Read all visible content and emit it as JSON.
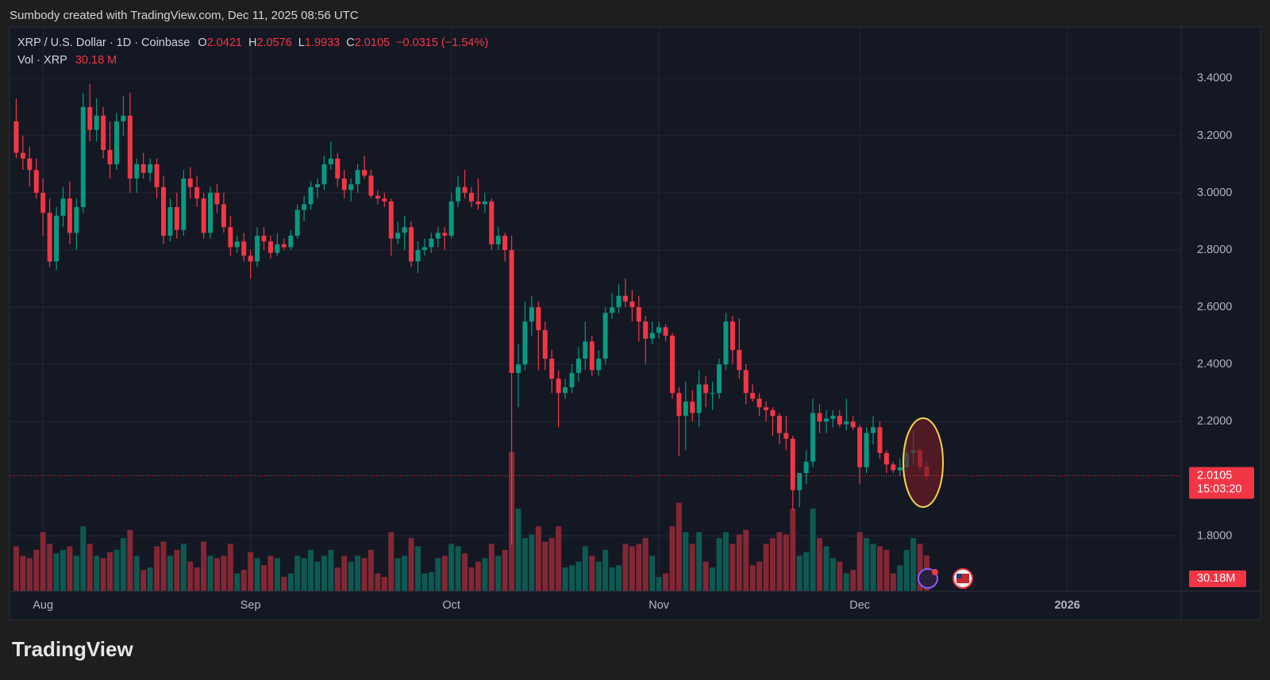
{
  "watermark": "Sumbody created with TradingView.com, Dec 11, 2025 08:56 UTC",
  "footer_logo": "TradingView",
  "chart_data": {
    "type": "candlestick",
    "symbol": "XRP / U.S. Dollar · 1D · Coinbase",
    "ohlc_letters": [
      "O",
      "H",
      "L",
      "C"
    ],
    "change_label": "−0.0315 (−1.54%)",
    "volume_title": "Vol · XRP",
    "volume_label": "30.18 M",
    "volume_tag_label": "30.18M",
    "countdown": "15:03:20",
    "up_color": "#089981",
    "down_color": "#f23645",
    "x": [
      "2025-07-28",
      "2025-07-29",
      "2025-07-30",
      "2025-07-31",
      "2025-08-01",
      "2025-08-02",
      "2025-08-03",
      "2025-08-04",
      "2025-08-05",
      "2025-08-06",
      "2025-08-07",
      "2025-08-08",
      "2025-08-09",
      "2025-08-10",
      "2025-08-11",
      "2025-08-12",
      "2025-08-13",
      "2025-08-14",
      "2025-08-15",
      "2025-08-16",
      "2025-08-17",
      "2025-08-18",
      "2025-08-19",
      "2025-08-20",
      "2025-08-21",
      "2025-08-22",
      "2025-08-23",
      "2025-08-24",
      "2025-08-25",
      "2025-08-26",
      "2025-08-27",
      "2025-08-28",
      "2025-08-29",
      "2025-08-30",
      "2025-08-31",
      "2025-09-01",
      "2025-09-02",
      "2025-09-03",
      "2025-09-04",
      "2025-09-05",
      "2025-09-06",
      "2025-09-07",
      "2025-09-08",
      "2025-09-09",
      "2025-09-10",
      "2025-09-11",
      "2025-09-12",
      "2025-09-13",
      "2025-09-14",
      "2025-09-15",
      "2025-09-16",
      "2025-09-17",
      "2025-09-18",
      "2025-09-19",
      "2025-09-20",
      "2025-09-21",
      "2025-09-22",
      "2025-09-23",
      "2025-09-24",
      "2025-09-25",
      "2025-09-26",
      "2025-09-27",
      "2025-09-28",
      "2025-09-29",
      "2025-09-30",
      "2025-10-01",
      "2025-10-02",
      "2025-10-03",
      "2025-10-04",
      "2025-10-05",
      "2025-10-06",
      "2025-10-07",
      "2025-10-08",
      "2025-10-09",
      "2025-10-10",
      "2025-10-11",
      "2025-10-12",
      "2025-10-13",
      "2025-10-14",
      "2025-10-15",
      "2025-10-16",
      "2025-10-17",
      "2025-10-18",
      "2025-10-19",
      "2025-10-20",
      "2025-10-21",
      "2025-10-22",
      "2025-10-23",
      "2025-10-24",
      "2025-10-25",
      "2025-10-26",
      "2025-10-27",
      "2025-10-28",
      "2025-10-29",
      "2025-10-30",
      "2025-10-31",
      "2025-11-01",
      "2025-11-02",
      "2025-11-03",
      "2025-11-04",
      "2025-11-05",
      "2025-11-06",
      "2025-11-07",
      "2025-11-08",
      "2025-11-09",
      "2025-11-10",
      "2025-11-11",
      "2025-11-12",
      "2025-11-13",
      "2025-11-14",
      "2025-11-15",
      "2025-11-16",
      "2025-11-17",
      "2025-11-18",
      "2025-11-19",
      "2025-11-20",
      "2025-11-21",
      "2025-11-22",
      "2025-11-23",
      "2025-11-24",
      "2025-11-25",
      "2025-11-26",
      "2025-11-27",
      "2025-11-28",
      "2025-11-29",
      "2025-11-30",
      "2025-12-01",
      "2025-12-02",
      "2025-12-03",
      "2025-12-04",
      "2025-12-05",
      "2025-12-06",
      "2025-12-07",
      "2025-12-08",
      "2025-12-09",
      "2025-12-10",
      "2025-12-11"
    ],
    "open": [
      3.25,
      3.14,
      3.12,
      3.08,
      3.0,
      2.93,
      2.76,
      2.92,
      2.98,
      2.86,
      2.95,
      3.3,
      3.22,
      3.27,
      3.15,
      3.1,
      3.25,
      3.27,
      3.05,
      3.1,
      3.07,
      3.1,
      3.02,
      2.85,
      2.95,
      2.87,
      3.05,
      3.02,
      2.98,
      2.86,
      3.0,
      2.96,
      2.88,
      2.81,
      2.83,
      2.78,
      2.76,
      2.85,
      2.83,
      2.79,
      2.82,
      2.81,
      2.85,
      2.94,
      2.96,
      3.02,
      3.03,
      3.1,
      3.12,
      3.05,
      3.01,
      3.03,
      3.08,
      3.06,
      2.99,
      2.98,
      2.97,
      2.84,
      2.86,
      2.88,
      2.76,
      2.8,
      2.81,
      2.84,
      2.86,
      2.85,
      2.97,
      3.02,
      3.0,
      2.97,
      2.96,
      2.97,
      2.82,
      2.85,
      2.8,
      2.37,
      2.4,
      2.55,
      2.6,
      2.52,
      2.42,
      2.35,
      2.3,
      2.32,
      2.37,
      2.42,
      2.48,
      2.38,
      2.42,
      2.58,
      2.6,
      2.64,
      2.62,
      2.6,
      2.55,
      2.49,
      2.51,
      2.53,
      2.5,
      2.3,
      2.22,
      2.27,
      2.23,
      2.33,
      2.3,
      2.3,
      2.4,
      2.55,
      2.45,
      2.38,
      2.3,
      2.28,
      2.25,
      2.24,
      2.22,
      2.16,
      2.14,
      1.96,
      2.02,
      2.06,
      2.23,
      2.2,
      2.21,
      2.22,
      2.19,
      2.2,
      2.18,
      2.04,
      2.16,
      2.18,
      2.09,
      2.05,
      2.03,
      2.04,
      2.09,
      2.1,
      2.0421
    ],
    "high": [
      3.33,
      3.2,
      3.16,
      3.12,
      3.05,
      2.98,
      2.95,
      3.02,
      3.04,
      2.98,
      3.35,
      3.38,
      3.33,
      3.3,
      3.25,
      3.28,
      3.34,
      3.35,
      3.12,
      3.14,
      3.12,
      3.12,
      3.06,
      2.98,
      3.0,
      3.08,
      3.09,
      3.06,
      3.0,
      3.02,
      3.03,
      3.0,
      2.92,
      2.85,
      2.86,
      2.8,
      2.88,
      2.88,
      2.85,
      2.86,
      2.84,
      2.87,
      2.96,
      2.99,
      3.04,
      3.05,
      3.13,
      3.18,
      3.14,
      3.08,
      3.05,
      3.1,
      3.13,
      3.08,
      3.01,
      3.0,
      2.98,
      2.9,
      2.92,
      2.9,
      2.83,
      2.84,
      2.86,
      2.88,
      2.88,
      3.0,
      3.06,
      3.08,
      3.02,
      3.05,
      3.0,
      2.98,
      2.88,
      2.86,
      2.85,
      2.47,
      2.62,
      2.64,
      2.62,
      2.55,
      2.45,
      2.38,
      2.35,
      2.4,
      2.46,
      2.55,
      2.5,
      2.45,
      2.6,
      2.65,
      2.68,
      2.7,
      2.66,
      2.64,
      2.57,
      2.55,
      2.55,
      2.54,
      2.51,
      2.32,
      2.34,
      2.31,
      2.38,
      2.36,
      2.34,
      2.42,
      2.58,
      2.57,
      2.56,
      2.4,
      2.33,
      2.3,
      2.27,
      2.25,
      2.23,
      2.22,
      2.15,
      2.02,
      2.1,
      2.28,
      2.26,
      2.24,
      2.24,
      2.24,
      2.28,
      2.22,
      2.19,
      2.18,
      2.22,
      2.2,
      2.1,
      2.06,
      2.07,
      2.14,
      2.17,
      2.11,
      2.0576
    ],
    "low": [
      3.12,
      3.08,
      3.02,
      2.98,
      2.85,
      2.74,
      2.73,
      2.88,
      2.82,
      2.8,
      2.93,
      3.18,
      3.18,
      3.12,
      3.05,
      3.08,
      3.2,
      3.0,
      3.0,
      3.05,
      3.04,
      2.98,
      2.82,
      2.83,
      2.84,
      2.85,
      2.98,
      2.95,
      2.84,
      2.84,
      2.93,
      2.86,
      2.78,
      2.79,
      2.76,
      2.7,
      2.74,
      2.8,
      2.77,
      2.78,
      2.8,
      2.8,
      2.84,
      2.9,
      2.94,
      2.98,
      3.01,
      3.08,
      3.02,
      2.98,
      2.97,
      3.0,
      3.05,
      2.98,
      2.96,
      2.95,
      2.78,
      2.82,
      2.8,
      2.74,
      2.72,
      2.78,
      2.79,
      2.81,
      2.8,
      2.84,
      2.95,
      2.98,
      2.95,
      2.94,
      2.93,
      2.8,
      2.8,
      2.76,
      1.77,
      2.25,
      2.38,
      2.5,
      2.38,
      2.38,
      2.3,
      2.18,
      2.28,
      2.3,
      2.34,
      2.38,
      2.36,
      2.36,
      2.4,
      2.56,
      2.58,
      2.6,
      2.55,
      2.48,
      2.4,
      2.47,
      2.49,
      2.48,
      2.28,
      2.08,
      2.1,
      2.2,
      2.18,
      2.25,
      2.24,
      2.28,
      2.38,
      2.4,
      2.35,
      2.26,
      2.27,
      2.22,
      2.2,
      2.15,
      2.12,
      2.1,
      1.89,
      1.9,
      1.98,
      2.04,
      2.16,
      2.16,
      2.18,
      2.18,
      2.17,
      2.17,
      1.98,
      2.02,
      2.12,
      2.07,
      2.02,
      2.02,
      2.01,
      2.03,
      2.05,
      2.03,
      1.9933
    ],
    "close": [
      3.14,
      3.12,
      3.08,
      3.0,
      2.93,
      2.76,
      2.92,
      2.98,
      2.86,
      2.95,
      3.3,
      3.22,
      3.27,
      3.15,
      3.1,
      3.25,
      3.27,
      3.05,
      3.1,
      3.07,
      3.1,
      3.02,
      2.85,
      2.95,
      2.87,
      3.05,
      3.02,
      2.98,
      2.86,
      3.0,
      2.96,
      2.88,
      2.81,
      2.83,
      2.78,
      2.76,
      2.85,
      2.83,
      2.79,
      2.82,
      2.81,
      2.85,
      2.94,
      2.96,
      3.02,
      3.03,
      3.1,
      3.12,
      3.05,
      3.01,
      3.03,
      3.08,
      3.06,
      2.99,
      2.98,
      2.97,
      2.84,
      2.86,
      2.88,
      2.76,
      2.8,
      2.81,
      2.84,
      2.86,
      2.85,
      2.97,
      3.02,
      3.0,
      2.97,
      2.96,
      2.97,
      2.82,
      2.85,
      2.8,
      2.37,
      2.4,
      2.55,
      2.6,
      2.52,
      2.42,
      2.35,
      2.3,
      2.32,
      2.37,
      2.42,
      2.48,
      2.38,
      2.42,
      2.58,
      2.6,
      2.64,
      2.62,
      2.6,
      2.55,
      2.49,
      2.51,
      2.53,
      2.5,
      2.3,
      2.22,
      2.27,
      2.23,
      2.33,
      2.3,
      2.3,
      2.4,
      2.55,
      2.45,
      2.38,
      2.3,
      2.28,
      2.25,
      2.24,
      2.22,
      2.16,
      2.14,
      1.96,
      2.02,
      2.06,
      2.23,
      2.2,
      2.21,
      2.22,
      2.19,
      2.2,
      2.18,
      2.04,
      2.16,
      2.18,
      2.09,
      2.05,
      2.03,
      2.04,
      2.09,
      2.1,
      2.042,
      2.0105
    ],
    "volume": [
      38,
      30,
      28,
      35,
      50,
      40,
      32,
      35,
      38,
      30,
      55,
      40,
      30,
      28,
      33,
      35,
      45,
      52,
      30,
      18,
      20,
      38,
      42,
      30,
      35,
      40,
      25,
      20,
      42,
      30,
      28,
      30,
      40,
      15,
      18,
      33,
      28,
      22,
      30,
      28,
      12,
      15,
      30,
      28,
      35,
      25,
      30,
      35,
      20,
      30,
      25,
      30,
      28,
      35,
      15,
      12,
      50,
      28,
      30,
      45,
      38,
      15,
      16,
      28,
      30,
      40,
      38,
      32,
      20,
      25,
      28,
      40,
      30,
      35,
      118,
      70,
      45,
      48,
      55,
      42,
      45,
      55,
      20,
      22,
      25,
      38,
      30,
      25,
      35,
      20,
      22,
      40,
      38,
      40,
      45,
      30,
      12,
      15,
      55,
      75,
      50,
      40,
      50,
      25,
      20,
      45,
      50,
      40,
      48,
      52,
      22,
      25,
      40,
      45,
      50,
      48,
      70,
      30,
      33,
      70,
      45,
      38,
      28,
      25,
      15,
      18,
      50,
      45,
      40,
      38,
      35,
      15,
      22,
      35,
      45,
      40,
      30.18
    ],
    "xlim": [
      "2025-07-27",
      "2026-01-18"
    ],
    "xticks": [
      {
        "value": "2025-08-01",
        "label": "Aug"
      },
      {
        "value": "2025-09-01",
        "label": "Sep"
      },
      {
        "value": "2025-10-01",
        "label": "Oct"
      },
      {
        "value": "2025-11-01",
        "label": "Nov"
      },
      {
        "value": "2025-12-01",
        "label": "Dec"
      },
      {
        "value": "2026-01-01",
        "label": "2026"
      }
    ],
    "ylim": [
      1.607,
      3.58
    ],
    "yticks": [
      {
        "value": 1.8,
        "label": "1.8000"
      },
      {
        "value": 2.2,
        "label": "2.2000"
      },
      {
        "value": 2.4,
        "label": "2.4000"
      },
      {
        "value": 2.6,
        "label": "2.6000"
      },
      {
        "value": 2.8,
        "label": "2.8000"
      },
      {
        "value": 3.0,
        "label": "3.0000"
      },
      {
        "value": 3.2,
        "label": "3.2000"
      },
      {
        "value": 3.4,
        "label": "3.4000"
      }
    ],
    "vlim": [
      0,
      150
    ],
    "grid": true
  }
}
